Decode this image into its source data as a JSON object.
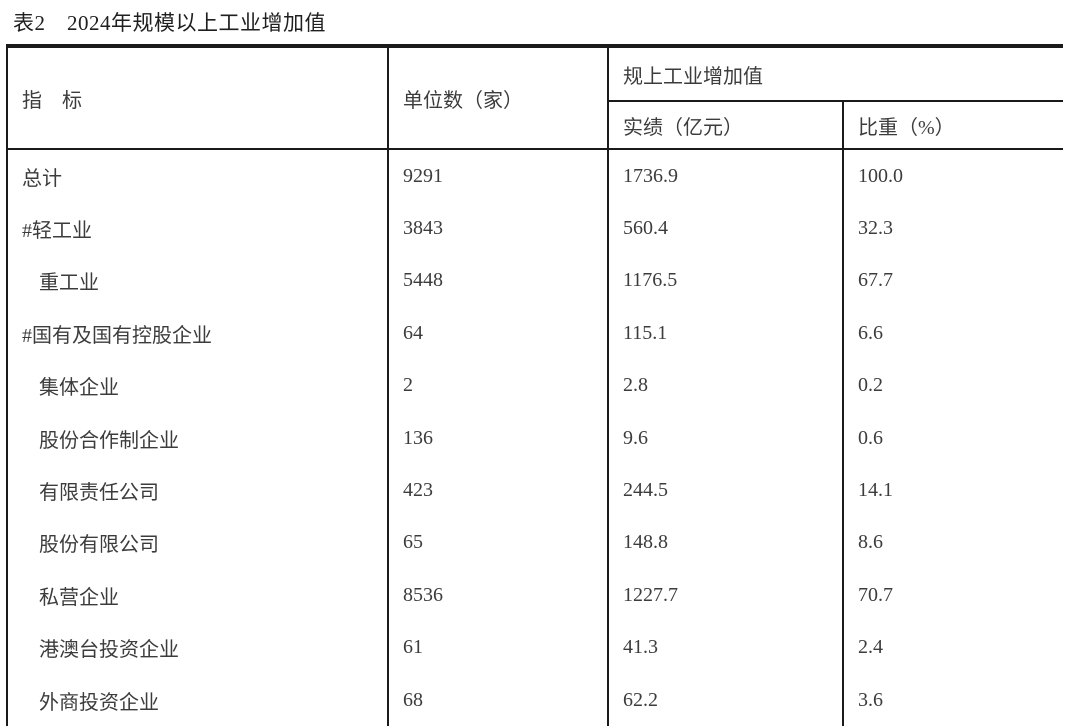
{
  "title": "表2　2024年规模以上工业增加值",
  "table": {
    "headers": {
      "indicator": "指　标",
      "units": "单位数（家）",
      "group": "规上工业增加值",
      "actual": "实绩（亿元）",
      "share": "比重（%）"
    },
    "rows": [
      {
        "label": "总计",
        "indent": false,
        "units": "9291",
        "actual": "1736.9",
        "share": "100.0"
      },
      {
        "label": "#轻工业",
        "indent": false,
        "units": "3843",
        "actual": "560.4",
        "share": "32.3"
      },
      {
        "label": "重工业",
        "indent": true,
        "units": "5448",
        "actual": "1176.5",
        "share": "67.7"
      },
      {
        "label": "#国有及国有控股企业",
        "indent": false,
        "units": "64",
        "actual": "115.1",
        "share": "6.6"
      },
      {
        "label": "集体企业",
        "indent": true,
        "units": "2",
        "actual": "2.8",
        "share": "0.2"
      },
      {
        "label": "股份合作制企业",
        "indent": true,
        "units": "136",
        "actual": "9.6",
        "share": "0.6"
      },
      {
        "label": "有限责任公司",
        "indent": true,
        "units": "423",
        "actual": "244.5",
        "share": "14.1"
      },
      {
        "label": "股份有限公司",
        "indent": true,
        "units": "65",
        "actual": "148.8",
        "share": "8.6"
      },
      {
        "label": "私营企业",
        "indent": true,
        "units": "8536",
        "actual": "1227.7",
        "share": "70.7"
      },
      {
        "label": "港澳台投资企业",
        "indent": true,
        "units": "61",
        "actual": "41.3",
        "share": "2.4"
      },
      {
        "label": "外商投资企业",
        "indent": true,
        "units": "68",
        "actual": "62.2",
        "share": "3.6"
      }
    ]
  }
}
